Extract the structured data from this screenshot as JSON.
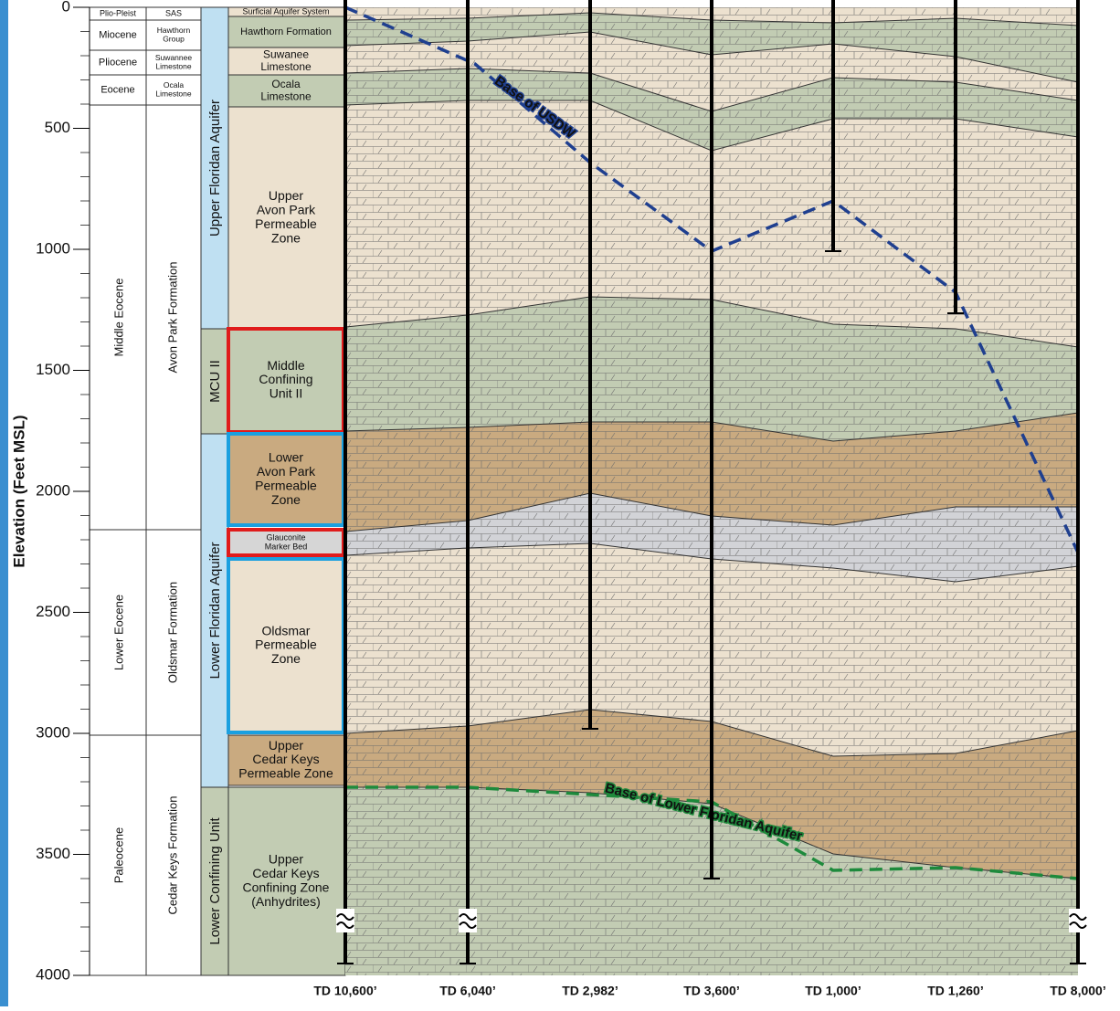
{
  "axis": {
    "label": "Elevation (Feet MSL)",
    "lim": [
      0,
      4000
    ],
    "ticks": [
      0,
      500,
      1000,
      1500,
      2000,
      2500,
      3000,
      3500,
      4000
    ]
  },
  "epochs": [
    "Plio-Pleist",
    "Miocene",
    "Pliocene",
    "Eocene",
    "Middle Eocene",
    "Lower Eocene",
    "Paleocene"
  ],
  "formations": [
    [
      "SAS"
    ],
    [
      "Hawthorn",
      "Group"
    ],
    [
      "Suwannee",
      "Limestone"
    ],
    [
      "Ocala",
      "Limestone"
    ],
    [
      "Avon Park Formation"
    ],
    [
      "Oldsmar Formation"
    ],
    [
      "Cedar Keys Formation"
    ]
  ],
  "aquifers": [
    "Upper Floridan Aquifer",
    "MCU II",
    "Lower Floridan Aquifer",
    "Lower Confining Unit"
  ],
  "zones": [
    [
      "Surficial Aquifer System"
    ],
    [
      "Hawthorn Formation"
    ],
    [
      "Suwanee",
      "Limestone"
    ],
    [
      "Ocala",
      "Limestone"
    ],
    [
      "Upper",
      "Avon Park",
      "Permeable",
      "Zone"
    ],
    [
      "Middle",
      "Confining",
      "Unit II"
    ],
    [
      "Lower",
      "Avon Park",
      "Permeable",
      "Zone"
    ],
    [
      "Glauconite",
      "Marker Bed"
    ],
    [
      "Oldsmar",
      "Permeable",
      "Zone"
    ],
    [
      "Upper",
      "Cedar Keys",
      "Permeable Zone"
    ],
    [
      "Upper",
      "Cedar Keys",
      "Confining Zone",
      "(Anhydrites)"
    ]
  ],
  "annotations": {
    "usdw": "Base of USDW",
    "lfa": "Base of Lower Floridan Aquifer"
  },
  "wells": [
    "TD 10,600’",
    "TD 6,040’",
    "TD 2,982’",
    "TD 3,600’",
    "TD 1,000’",
    "TD 1,260’",
    "TD 8,000’"
  ]
}
